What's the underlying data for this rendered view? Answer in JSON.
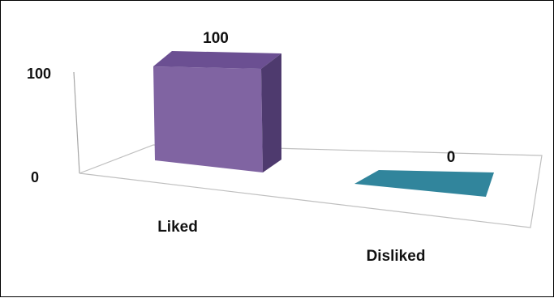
{
  "chart_data": {
    "type": "bar",
    "categories": [
      "Liked",
      "Disliked"
    ],
    "values": [
      100,
      0
    ],
    "data_labels": [
      "100",
      "0"
    ],
    "y_ticks": [
      "0",
      "100"
    ],
    "ylim": [
      0,
      100
    ],
    "title": "",
    "xlabel": "",
    "ylabel": "",
    "grid": false,
    "legend": "none",
    "style": "3d",
    "colors": {
      "liked_front": "#8064A2",
      "liked_top": "#6B4F92",
      "liked_side": "#4E3A6E",
      "disliked": "#31859C",
      "floor_line": "#BFBFBF",
      "axis_line": "#A6A6A6"
    }
  }
}
